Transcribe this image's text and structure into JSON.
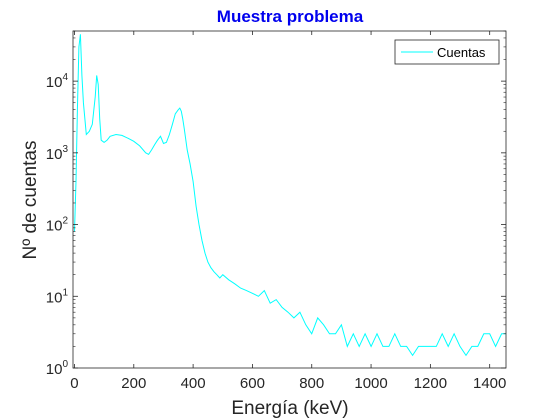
{
  "chart_data": {
    "type": "line",
    "title": "Muestra problema",
    "xlabel": "Energía (keV)",
    "ylabel": "Nº de cuentas",
    "xlim": [
      -5,
      1455
    ],
    "ylim": [
      1,
      50000
    ],
    "y_scale": "log",
    "grid": false,
    "legend_position": "top-right",
    "title_color": "#0000ee",
    "series_color": "#00ffff",
    "x_ticks": [
      {
        "value": 0,
        "label": "0"
      },
      {
        "value": 200,
        "label": "200"
      },
      {
        "value": 400,
        "label": "400"
      },
      {
        "value": 600,
        "label": "600"
      },
      {
        "value": 800,
        "label": "800"
      },
      {
        "value": 1000,
        "label": "1000"
      },
      {
        "value": 1200,
        "label": "1200"
      },
      {
        "value": 1400,
        "label": "1400"
      }
    ],
    "y_ticks": [
      {
        "value": 1,
        "base": "10",
        "exp": "0"
      },
      {
        "value": 10,
        "base": "10",
        "exp": "1"
      },
      {
        "value": 100,
        "base": "10",
        "exp": "2"
      },
      {
        "value": 1000,
        "base": "10",
        "exp": "3"
      },
      {
        "value": 10000,
        "base": "10",
        "exp": "4"
      }
    ],
    "series": [
      {
        "name": "Cuentas",
        "x": [
          0,
          5,
          10,
          15,
          20,
          25,
          30,
          40,
          50,
          60,
          70,
          75,
          80,
          85,
          90,
          100,
          110,
          120,
          140,
          160,
          180,
          200,
          220,
          240,
          250,
          260,
          270,
          280,
          290,
          300,
          310,
          320,
          330,
          340,
          350,
          355,
          360,
          365,
          370,
          380,
          390,
          400,
          410,
          420,
          430,
          440,
          450,
          460,
          470,
          480,
          490,
          500,
          520,
          540,
          560,
          580,
          600,
          620,
          640,
          660,
          680,
          700,
          720,
          740,
          760,
          780,
          800,
          820,
          840,
          860,
          880,
          900,
          920,
          940,
          960,
          980,
          1000,
          1020,
          1040,
          1060,
          1080,
          1100,
          1120,
          1140,
          1160,
          1180,
          1200,
          1220,
          1240,
          1260,
          1280,
          1300,
          1320,
          1340,
          1360,
          1380,
          1400,
          1420,
          1440,
          1455
        ],
        "y": [
          80,
          400,
          4000,
          30000,
          45000,
          12000,
          5000,
          1800,
          2000,
          2500,
          6000,
          12000,
          9000,
          3000,
          1500,
          1400,
          1500,
          1700,
          1800,
          1750,
          1600,
          1450,
          1250,
          1000,
          950,
          1100,
          1300,
          1500,
          1700,
          1350,
          1400,
          1800,
          2500,
          3500,
          4000,
          4200,
          3800,
          3000,
          2200,
          1100,
          700,
          400,
          180,
          100,
          60,
          40,
          30,
          25,
          22,
          20,
          18,
          20,
          17,
          15,
          13,
          12,
          11,
          10,
          12,
          8,
          9,
          7,
          6,
          5,
          6,
          4,
          3,
          5,
          4,
          3,
          3,
          4,
          2,
          3,
          2,
          3,
          2,
          3,
          2,
          2,
          3,
          2,
          2,
          1.5,
          2,
          2,
          2,
          2,
          3,
          2,
          3,
          2,
          1.5,
          2,
          2,
          3,
          3,
          2,
          3,
          3
        ]
      }
    ]
  }
}
